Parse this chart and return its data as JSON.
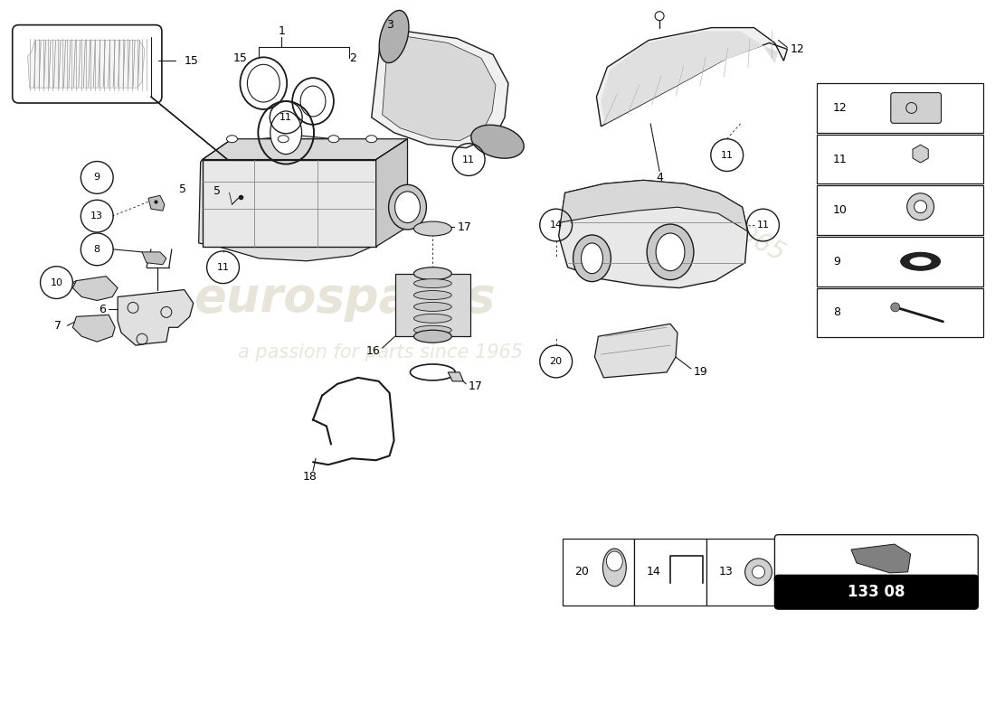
{
  "background_color": "#ffffff",
  "watermark_text1": "eurospares",
  "watermark_text2": "a passion for parts since 1965",
  "part_number": "133 08",
  "line_color": "#1a1a1a",
  "light_gray": "#e0e0e0",
  "mid_gray": "#b0b0b0",
  "dark_gray": "#555555",
  "sidebar_items": [
    "12",
    "11",
    "10",
    "9",
    "8"
  ],
  "bottom_items": [
    "20",
    "14",
    "13"
  ]
}
